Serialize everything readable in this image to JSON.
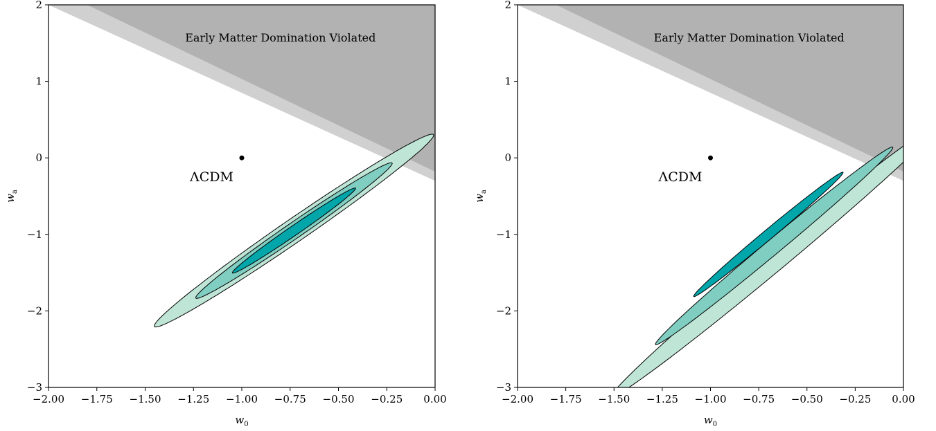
{
  "chart_data": [
    {
      "type": "contour",
      "xlabel": "w0",
      "ylabel": "wa",
      "xlim": [
        -2.0,
        0.0
      ],
      "ylim": [
        -3,
        2
      ],
      "xticks": [
        -2.0,
        -1.75,
        -1.5,
        -1.25,
        -1.0,
        -0.75,
        -0.5,
        -0.25,
        0.0
      ],
      "xtick_labels": [
        "−2.00",
        "−1.75",
        "−1.50",
        "−1.25",
        "−1.00",
        "−0.75",
        "−0.50",
        "−0.25",
        "0.00"
      ],
      "yticks": [
        -3,
        -2,
        -1,
        0,
        1,
        2
      ],
      "ytick_labels": [
        "−3",
        "−2",
        "−1",
        "0",
        "1",
        "2"
      ],
      "excluded_region": {
        "label": "Early Matter Domination Violated",
        "boundary_outer": [
          [
            -2.0,
            2.0
          ],
          [
            0.0,
            -0.3
          ]
        ],
        "boundary_inner": [
          [
            -1.8,
            2.0
          ],
          [
            0.0,
            -0.18
          ]
        ],
        "colors": {
          "outer": "#d0d0d0",
          "inner": "#b2b2b2"
        }
      },
      "reference_point": {
        "label": "ΛCDM",
        "w0": -1.0,
        "wa": 0.0
      },
      "contours": [
        {
          "level": "3sigma",
          "color": "#bfe5d6",
          "center": [
            -0.73,
            -0.95
          ],
          "angle_deg": 60.3,
          "semi_major": 1.45,
          "semi_minor": 0.092
        },
        {
          "level": "2sigma",
          "color": "#80cdc1",
          "center": [
            -0.73,
            -0.95
          ],
          "angle_deg": 60.3,
          "semi_major": 1.02,
          "semi_minor": 0.063
        },
        {
          "level": "1sigma",
          "color": "#00a6aa",
          "center": [
            -0.73,
            -0.95
          ],
          "angle_deg": 60.3,
          "semi_major": 0.64,
          "semi_minor": 0.038
        }
      ]
    },
    {
      "type": "contour",
      "xlabel": "w0",
      "ylabel": "wa",
      "xlim": [
        -2.0,
        0.0
      ],
      "ylim": [
        -3,
        2
      ],
      "xticks": [
        -2.0,
        -1.75,
        -1.5,
        -1.25,
        -1.0,
        -0.75,
        -0.5,
        -0.25,
        0.0
      ],
      "xtick_labels": [
        "−2.00",
        "−1.75",
        "−1.50",
        "−1.25",
        "−1.00",
        "−0.75",
        "−0.50",
        "−0.25",
        "0.00"
      ],
      "yticks": [
        -3,
        -2,
        -1,
        0,
        1,
        2
      ],
      "ytick_labels": [
        "−3",
        "−2",
        "−1",
        "0",
        "1",
        "2"
      ],
      "excluded_region": {
        "label": "Early Matter Domination Violated",
        "boundary_outer": [
          [
            -2.0,
            2.0
          ],
          [
            0.0,
            -0.3
          ]
        ],
        "boundary_inner": [
          [
            -1.8,
            2.0
          ],
          [
            0.0,
            -0.18
          ]
        ],
        "colors": {
          "outer": "#d0d0d0",
          "inner": "#b2b2b2"
        }
      },
      "reference_point": {
        "label": "ΛCDM",
        "w0": -1.0,
        "wa": 0.0
      },
      "contours": [
        {
          "level": "3sigma",
          "color": "#bfe5d6",
          "center": [
            -0.67,
            -1.35
          ],
          "angle_deg": 64.6,
          "semi_major": 1.95,
          "semi_minor": 0.075
        },
        {
          "level": "2sigma",
          "color": "#80cdc1",
          "center": [
            -0.67,
            -1.15
          ],
          "angle_deg": 64.6,
          "semi_major": 1.43,
          "semi_minor": 0.055
        },
        {
          "level": "1sigma",
          "color": "#00a6aa",
          "center": [
            -0.7,
            -1.0
          ],
          "angle_deg": 64.6,
          "semi_major": 0.9,
          "semi_minor": 0.036
        }
      ]
    }
  ]
}
